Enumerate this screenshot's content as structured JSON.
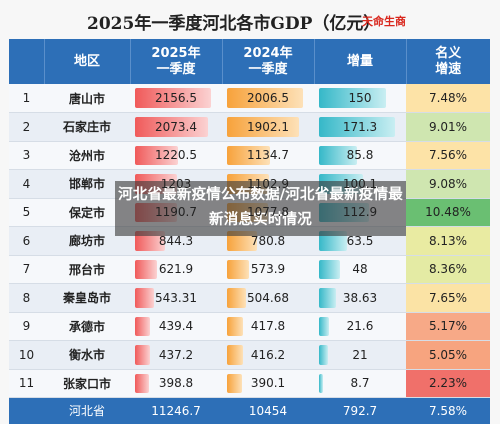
{
  "title": "2025年一季度河北各市GDP（亿元）",
  "source": "天命生商",
  "headers": [
    "地区",
    "2025年\n一季度",
    "2024年\n一季度",
    "增量",
    "名义\n增速"
  ],
  "rows": [
    {
      "idx": "1",
      "city": "唐山市",
      "v2025": "2156.5",
      "v2024": "2006.5",
      "inc": "150",
      "growth": "7.48%",
      "gcolor": "#fde3a7"
    },
    {
      "idx": "2",
      "city": "石家庄市",
      "v2025": "2073.4",
      "v2024": "1902.1",
      "inc": "171.3",
      "growth": "9.01%",
      "gcolor": "#cfe6b0"
    },
    {
      "idx": "3",
      "city": "沧州市",
      "v2025": "1220.5",
      "v2024": "1134.7",
      "inc": "85.8",
      "growth": "7.56%",
      "gcolor": "#fde3a7"
    },
    {
      "idx": "4",
      "city": "邯郸市",
      "v2025": "1203",
      "v2024": "1102.9",
      "inc": "100.1",
      "growth": "9.08%",
      "gcolor": "#cfe6b0"
    },
    {
      "idx": "5",
      "city": "保定市",
      "v2025": "1190.7",
      "v2024": "1077.8",
      "inc": "112.9",
      "growth": "10.48%",
      "gcolor": "#6abf72"
    },
    {
      "idx": "6",
      "city": "廊坊市",
      "v2025": "844.3",
      "v2024": "780.8",
      "inc": "63.5",
      "growth": "8.13%",
      "gcolor": "#e9eba2"
    },
    {
      "idx": "7",
      "city": "邢台市",
      "v2025": "621.9",
      "v2024": "573.9",
      "inc": "48",
      "growth": "8.36%",
      "gcolor": "#e4eba4"
    },
    {
      "idx": "8",
      "city": "秦皇岛市",
      "v2025": "543.31",
      "v2024": "504.68",
      "inc": "38.63",
      "growth": "7.65%",
      "gcolor": "#fbe3a5"
    },
    {
      "idx": "9",
      "city": "承德市",
      "v2025": "439.4",
      "v2024": "417.8",
      "inc": "21.6",
      "growth": "5.17%",
      "gcolor": "#f7a987"
    },
    {
      "idx": "10",
      "city": "衡水市",
      "v2025": "437.2",
      "v2024": "416.2",
      "inc": "21",
      "growth": "5.05%",
      "gcolor": "#f7a47f"
    },
    {
      "idx": "11",
      "city": "张家口市",
      "v2025": "398.8",
      "v2024": "390.1",
      "inc": "8.7",
      "growth": "2.23%",
      "gcolor": "#f0706a"
    }
  ],
  "total": {
    "city": "河北省",
    "v2025": "11246.7",
    "v2024": "10454",
    "inc": "792.7",
    "growth": "7.58%"
  },
  "overlay_text": "河北省最新疫情公布数据/河北省最新疫情最新消息实时情况",
  "colors": {
    "header": "#2d6fb7",
    "bar2025": "#f05a5a",
    "bar2024": "#f7a23b",
    "barInc": "#35b8c8",
    "source": "#d9261c"
  }
}
